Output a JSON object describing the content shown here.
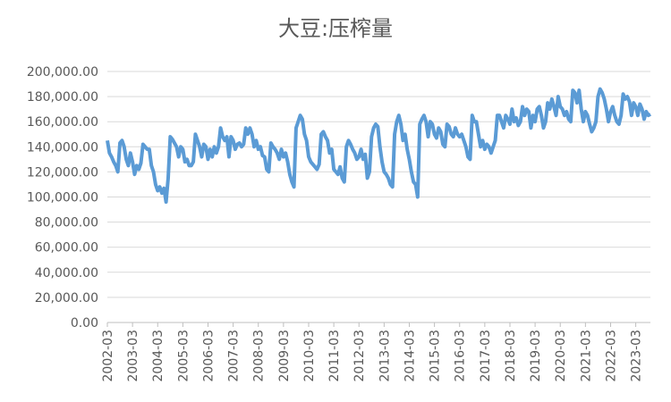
{
  "chart_data": {
    "type": "line",
    "title": "大豆:压榨量",
    "categories": [
      "2002-03",
      null,
      null,
      null,
      null,
      null,
      null,
      null,
      null,
      null,
      null,
      null,
      "2003-03",
      null,
      null,
      null,
      null,
      null,
      null,
      null,
      null,
      null,
      null,
      null,
      "2004-03",
      null,
      null,
      null,
      null,
      null,
      null,
      null,
      null,
      null,
      null,
      null,
      "2005-03",
      null,
      null,
      null,
      null,
      null,
      null,
      null,
      null,
      null,
      null,
      null,
      "2006-03",
      null,
      null,
      null,
      null,
      null,
      null,
      null,
      null,
      null,
      null,
      null,
      "2007-03",
      null,
      null,
      null,
      null,
      null,
      null,
      null,
      null,
      null,
      null,
      null,
      "2008-03",
      null,
      null,
      null,
      null,
      null,
      null,
      null,
      null,
      null,
      null,
      null,
      "2009-03",
      null,
      null,
      null,
      null,
      null,
      null,
      null,
      null,
      null,
      null,
      null,
      "2010-03",
      null,
      null,
      null,
      null,
      null,
      null,
      null,
      null,
      null,
      null,
      null,
      "2011-03",
      null,
      null,
      null,
      null,
      null,
      null,
      null,
      null,
      null,
      null,
      null,
      "2012-03",
      null,
      null,
      null,
      null,
      null,
      null,
      null,
      null,
      null,
      null,
      null,
      "2013-03",
      null,
      null,
      null,
      null,
      null,
      null,
      null,
      null,
      null,
      null,
      null,
      "2014-03",
      null,
      null,
      null,
      null,
      null,
      null,
      null,
      null,
      null,
      null,
      null,
      "2015-03",
      null,
      null,
      null,
      null,
      null,
      null,
      null,
      null,
      null,
      null,
      null,
      "2016-03",
      null,
      null,
      null,
      null,
      null,
      null,
      null,
      null,
      null,
      null,
      null,
      "2017-03",
      null,
      null,
      null,
      null,
      null,
      null,
      null,
      null,
      null,
      null,
      null,
      "2018-03",
      null,
      null,
      null,
      null,
      null,
      null,
      null,
      null,
      null,
      null,
      null,
      "2019-03",
      null,
      null,
      null,
      null,
      null,
      null,
      null,
      null,
      null,
      null,
      null,
      "2020-03",
      null,
      null,
      null,
      null,
      null,
      null,
      null,
      null,
      null,
      null,
      null,
      "2021-03",
      null,
      null,
      null,
      null,
      null,
      null,
      null,
      null,
      null,
      null,
      null,
      "2022-03",
      null,
      null,
      null,
      null,
      null,
      null,
      null,
      null,
      null,
      null,
      null,
      "2023-03",
      null,
      null,
      null,
      null,
      null,
      null,
      null
    ],
    "series": [
      {
        "color": "#5b9bd5",
        "values": [
          145000,
          135000,
          132000,
          128000,
          125000,
          120000,
          143000,
          145000,
          140000,
          130000,
          125000,
          135000,
          128000,
          118000,
          125000,
          122000,
          127000,
          142000,
          140000,
          138000,
          138000,
          125000,
          120000,
          110000,
          105000,
          108000,
          103000,
          107000,
          96000,
          115000,
          148000,
          146000,
          143000,
          140000,
          132000,
          140000,
          138000,
          128000,
          130000,
          125000,
          125000,
          128000,
          150000,
          145000,
          140000,
          132000,
          142000,
          140000,
          130000,
          138000,
          132000,
          140000,
          135000,
          140000,
          155000,
          148000,
          145000,
          148000,
          132000,
          148000,
          145000,
          138000,
          142000,
          143000,
          140000,
          142000,
          155000,
          150000,
          155000,
          150000,
          140000,
          145000,
          138000,
          140000,
          133000,
          132000,
          122000,
          120000,
          143000,
          140000,
          138000,
          135000,
          130000,
          138000,
          132000,
          135000,
          128000,
          118000,
          112000,
          108000,
          155000,
          160000,
          165000,
          162000,
          150000,
          145000,
          132000,
          128000,
          126000,
          124000,
          122000,
          126000,
          150000,
          152000,
          148000,
          145000,
          135000,
          138000,
          122000,
          120000,
          118000,
          124000,
          115000,
          112000,
          140000,
          145000,
          142000,
          138000,
          135000,
          130000,
          132000,
          138000,
          130000,
          134000,
          115000,
          120000,
          148000,
          155000,
          158000,
          156000,
          140000,
          128000,
          120000,
          118000,
          115000,
          110000,
          108000,
          150000,
          160000,
          165000,
          158000,
          145000,
          150000,
          138000,
          130000,
          120000,
          112000,
          110000,
          100000,
          158000,
          162000,
          165000,
          160000,
          148000,
          160000,
          158000,
          150000,
          147000,
          155000,
          152000,
          142000,
          140000,
          158000,
          156000,
          150000,
          148000,
          155000,
          150000,
          148000,
          150000,
          145000,
          140000,
          132000,
          130000,
          165000,
          160000,
          160000,
          150000,
          140000,
          145000,
          138000,
          142000,
          140000,
          135000,
          140000,
          145000,
          165000,
          165000,
          160000,
          155000,
          165000,
          162000,
          158000,
          170000,
          160000,
          163000,
          157000,
          160000,
          172000,
          165000,
          170000,
          168000,
          155000,
          165000,
          160000,
          170000,
          172000,
          165000,
          155000,
          160000,
          175000,
          170000,
          178000,
          172000,
          165000,
          180000,
          172000,
          170000,
          165000,
          168000,
          162000,
          160000,
          185000,
          183000,
          175000,
          185000,
          170000,
          160000,
          168000,
          165000,
          158000,
          152000,
          155000,
          160000,
          180000,
          186000,
          183000,
          178000,
          170000,
          160000,
          168000,
          172000,
          165000,
          160000,
          158000,
          165000,
          182000,
          178000,
          180000,
          176000,
          165000,
          175000,
          172000,
          165000,
          174000,
          170000,
          162000,
          168000,
          165000,
          166000
        ]
      }
    ],
    "ylim": [
      0,
      200000
    ],
    "yticks": [
      {
        "value": 0,
        "label": "0.00"
      },
      {
        "value": 20000,
        "label": "20,000.00"
      },
      {
        "value": 40000,
        "label": "40,000.00"
      },
      {
        "value": 60000,
        "label": "60,000.00"
      },
      {
        "value": 80000,
        "label": "80,000.00"
      },
      {
        "value": 100000,
        "label": "100,000.00"
      },
      {
        "value": 120000,
        "label": "120,000.00"
      },
      {
        "value": 140000,
        "label": "140,000.00"
      },
      {
        "value": 160000,
        "label": "160,000.00"
      },
      {
        "value": 180000,
        "label": "180,000.00"
      },
      {
        "value": 200000,
        "label": "200,000.00"
      }
    ],
    "grid": true
  }
}
